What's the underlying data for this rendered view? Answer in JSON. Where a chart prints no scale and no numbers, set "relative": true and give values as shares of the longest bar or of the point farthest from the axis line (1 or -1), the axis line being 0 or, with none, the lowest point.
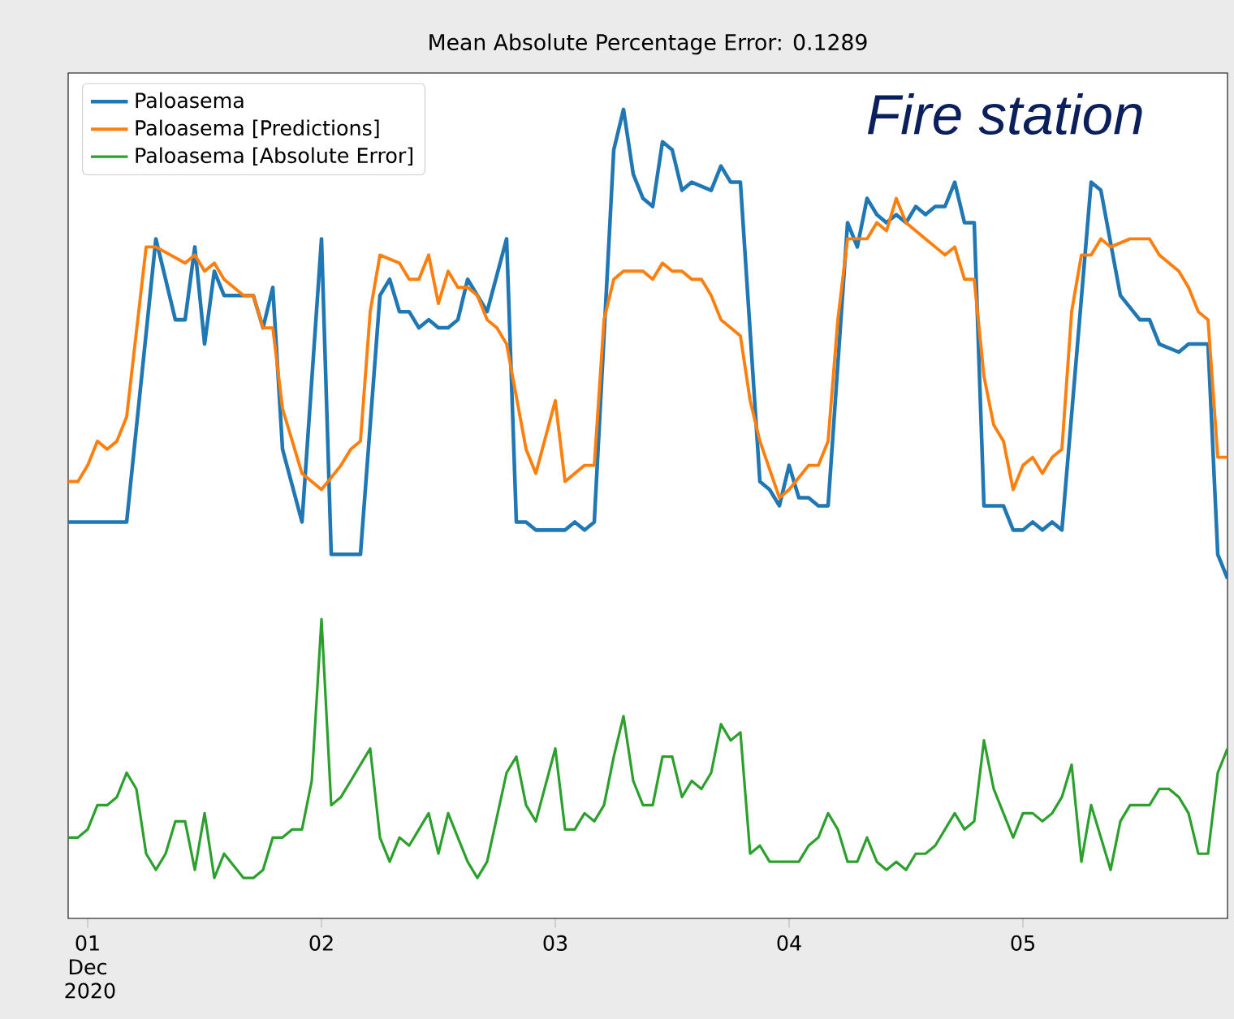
{
  "chart_data": {
    "type": "line",
    "title": "Mean Absolute Percentage Error: 0.1289",
    "annotations": [
      "Fire station"
    ],
    "relative": true,
    "legend": "top left",
    "xlim": [
      "2020-11-30T22:00",
      "2020-12-05T21:00"
    ],
    "xticks": [
      {
        "value": "2020-12-01",
        "label": "01 Dec 2020"
      },
      {
        "value": "2020-12-02",
        "label": "02"
      },
      {
        "value": "2020-12-03",
        "label": "03"
      },
      {
        "value": "2020-12-04",
        "label": "04"
      },
      {
        "value": "2020-12-05",
        "label": "05"
      }
    ],
    "series": [
      {
        "name": "Paloasema",
        "color": "#1f77b4",
        "x": [
          "2020-11-30T22:00",
          "2020-12-01T04:00",
          "2020-12-01T07:00",
          "2020-12-01T09:00",
          "2020-12-01T10:00",
          "2020-12-01T11:00",
          "2020-12-01T12:00",
          "2020-12-01T13:00",
          "2020-12-01T14:00",
          "2020-12-01T17:00",
          "2020-12-01T18:00",
          "2020-12-01T19:00",
          "2020-12-01T20:00",
          "2020-12-01T22:00",
          "2020-12-02T00:00",
          "2020-12-02T01:00",
          "2020-12-02T04:00",
          "2020-12-02T06:00",
          "2020-12-02T07:00",
          "2020-12-02T08:00",
          "2020-12-02T09:00",
          "2020-12-02T10:00",
          "2020-12-02T11:00",
          "2020-12-02T12:00",
          "2020-12-02T13:00",
          "2020-12-02T14:00",
          "2020-12-02T15:00",
          "2020-12-02T16:00",
          "2020-12-02T17:00",
          "2020-12-02T19:00",
          "2020-12-02T20:00",
          "2020-12-02T21:00",
          "2020-12-02T22:00",
          "2020-12-03T01:00",
          "2020-12-03T02:00",
          "2020-12-03T03:00",
          "2020-12-03T04:00",
          "2020-12-03T06:00",
          "2020-12-03T07:00",
          "2020-12-03T08:00",
          "2020-12-03T09:00",
          "2020-12-03T10:00",
          "2020-12-03T11:00",
          "2020-12-03T12:00",
          "2020-12-03T13:00",
          "2020-12-03T14:00",
          "2020-12-03T16:00",
          "2020-12-03T17:00",
          "2020-12-03T18:00",
          "2020-12-03T19:00",
          "2020-12-03T21:00",
          "2020-12-03T22:00",
          "2020-12-03T23:00",
          "2020-12-04T00:00",
          "2020-12-04T01:00",
          "2020-12-04T02:00",
          "2020-12-04T03:00",
          "2020-12-04T04:00",
          "2020-12-04T06:00",
          "2020-12-04T07:00",
          "2020-12-04T08:00",
          "2020-12-04T09:00",
          "2020-12-04T10:00",
          "2020-12-04T11:00",
          "2020-12-04T12:00",
          "2020-12-04T13:00",
          "2020-12-04T14:00",
          "2020-12-04T15:00",
          "2020-12-04T16:00",
          "2020-12-04T17:00",
          "2020-12-04T18:00",
          "2020-12-04T19:00",
          "2020-12-04T20:00",
          "2020-12-04T22:00",
          "2020-12-04T23:00",
          "2020-12-05T00:00",
          "2020-12-05T01:00",
          "2020-12-05T02:00",
          "2020-12-05T03:00",
          "2020-12-05T04:00",
          "2020-12-05T07:00",
          "2020-12-05T08:00",
          "2020-12-05T10:00",
          "2020-12-05T12:00",
          "2020-12-05T13:00",
          "2020-12-05T14:00",
          "2020-12-05T16:00",
          "2020-12-05T17:00",
          "2020-12-05T19:00",
          "2020-12-05T20:00",
          "2020-12-05T21:00"
        ],
        "values": [
          0.49,
          0.49,
          0.84,
          0.74,
          0.74,
          0.83,
          0.71,
          0.8,
          0.77,
          0.77,
          0.73,
          0.78,
          0.58,
          0.49,
          0.84,
          0.45,
          0.45,
          0.77,
          0.79,
          0.75,
          0.75,
          0.73,
          0.74,
          0.73,
          0.73,
          0.74,
          0.79,
          0.77,
          0.75,
          0.84,
          0.49,
          0.49,
          0.48,
          0.48,
          0.49,
          0.48,
          0.49,
          0.95,
          1.0,
          0.92,
          0.89,
          0.88,
          0.96,
          0.95,
          0.9,
          0.91,
          0.9,
          0.93,
          0.91,
          0.91,
          0.54,
          0.53,
          0.51,
          0.56,
          0.52,
          0.52,
          0.51,
          0.51,
          0.86,
          0.83,
          0.89,
          0.87,
          0.86,
          0.87,
          0.86,
          0.88,
          0.87,
          0.88,
          0.88,
          0.91,
          0.86,
          0.86,
          0.51,
          0.51,
          0.48,
          0.48,
          0.49,
          0.48,
          0.49,
          0.48,
          0.91,
          0.9,
          0.77,
          0.74,
          0.74,
          0.71,
          0.7,
          0.71,
          0.71,
          0.45,
          0.42
        ]
      },
      {
        "name": "Paloasema [Predictions]",
        "color": "#ff7f0e",
        "x": [
          "2020-11-30T22:00",
          "2020-11-30T23:00",
          "2020-12-01T00:00",
          "2020-12-01T01:00",
          "2020-12-01T02:00",
          "2020-12-01T03:00",
          "2020-12-01T04:00",
          "2020-12-01T06:00",
          "2020-12-01T07:00",
          "2020-12-01T10:00",
          "2020-12-01T11:00",
          "2020-12-01T12:00",
          "2020-12-01T13:00",
          "2020-12-01T14:00",
          "2020-12-01T16:00",
          "2020-12-01T17:00",
          "2020-12-01T18:00",
          "2020-12-01T19:00",
          "2020-12-01T20:00",
          "2020-12-01T22:00",
          "2020-12-02T00:00",
          "2020-12-02T02:00",
          "2020-12-02T03:00",
          "2020-12-02T04:00",
          "2020-12-02T05:00",
          "2020-12-02T06:00",
          "2020-12-02T08:00",
          "2020-12-02T09:00",
          "2020-12-02T10:00",
          "2020-12-02T11:00",
          "2020-12-02T12:00",
          "2020-12-02T13:00",
          "2020-12-02T14:00",
          "2020-12-02T15:00",
          "2020-12-02T16:00",
          "2020-12-02T17:00",
          "2020-12-02T18:00",
          "2020-12-02T19:00",
          "2020-12-02T21:00",
          "2020-12-02T22:00",
          "2020-12-03T00:00",
          "2020-12-03T01:00",
          "2020-12-03T02:00",
          "2020-12-03T03:00",
          "2020-12-03T04:00",
          "2020-12-03T05:00",
          "2020-12-03T06:00",
          "2020-12-03T07:00",
          "2020-12-03T08:00",
          "2020-12-03T09:00",
          "2020-12-03T10:00",
          "2020-12-03T11:00",
          "2020-12-03T12:00",
          "2020-12-03T13:00",
          "2020-12-03T14:00",
          "2020-12-03T15:00",
          "2020-12-03T16:00",
          "2020-12-03T17:00",
          "2020-12-03T18:00",
          "2020-12-03T19:00",
          "2020-12-03T20:00",
          "2020-12-03T21:00",
          "2020-12-03T23:00",
          "2020-12-04T00:00",
          "2020-12-04T02:00",
          "2020-12-04T03:00",
          "2020-12-04T04:00",
          "2020-12-04T05:00",
          "2020-12-04T06:00",
          "2020-12-04T07:00",
          "2020-12-04T08:00",
          "2020-12-04T09:00",
          "2020-12-04T10:00",
          "2020-12-04T11:00",
          "2020-12-04T12:00",
          "2020-12-04T13:00",
          "2020-12-04T14:00",
          "2020-12-04T15:00",
          "2020-12-04T16:00",
          "2020-12-04T17:00",
          "2020-12-04T18:00",
          "2020-12-04T19:00",
          "2020-12-04T20:00",
          "2020-12-04T21:00",
          "2020-12-04T22:00",
          "2020-12-04T23:00",
          "2020-12-05T00:00",
          "2020-12-05T01:00",
          "2020-12-05T02:00",
          "2020-12-05T03:00",
          "2020-12-05T04:00",
          "2020-12-05T05:00",
          "2020-12-05T06:00",
          "2020-12-05T07:00",
          "2020-12-05T08:00",
          "2020-12-05T09:00",
          "2020-12-05T11:00",
          "2020-12-05T13:00",
          "2020-12-05T14:00",
          "2020-12-05T15:00",
          "2020-12-05T16:00",
          "2020-12-05T17:00",
          "2020-12-05T18:00",
          "2020-12-05T19:00",
          "2020-12-05T20:00",
          "2020-12-05T21:00"
        ],
        "values": [
          0.54,
          0.54,
          0.56,
          0.59,
          0.58,
          0.59,
          0.62,
          0.83,
          0.83,
          0.81,
          0.82,
          0.8,
          0.81,
          0.79,
          0.77,
          0.77,
          0.73,
          0.73,
          0.63,
          0.55,
          0.53,
          0.56,
          0.58,
          0.59,
          0.75,
          0.82,
          0.81,
          0.79,
          0.79,
          0.82,
          0.76,
          0.8,
          0.78,
          0.78,
          0.77,
          0.74,
          0.73,
          0.71,
          0.58,
          0.55,
          0.64,
          0.54,
          0.55,
          0.56,
          0.56,
          0.74,
          0.79,
          0.8,
          0.8,
          0.8,
          0.79,
          0.81,
          0.8,
          0.8,
          0.79,
          0.79,
          0.77,
          0.74,
          0.73,
          0.72,
          0.64,
          0.59,
          0.52,
          0.53,
          0.56,
          0.56,
          0.59,
          0.74,
          0.84,
          0.84,
          0.84,
          0.86,
          0.85,
          0.89,
          0.86,
          0.85,
          0.84,
          0.83,
          0.82,
          0.83,
          0.79,
          0.79,
          0.67,
          0.61,
          0.59,
          0.53,
          0.56,
          0.57,
          0.55,
          0.57,
          0.58,
          0.75,
          0.82,
          0.82,
          0.84,
          0.83,
          0.84,
          0.84,
          0.82,
          0.81,
          0.8,
          0.78,
          0.75,
          0.74,
          0.57,
          0.57
        ]
      },
      {
        "name": "Paloasema [Absolute Error]",
        "color": "#2ca02c",
        "x": [
          "2020-11-30T22:00",
          "2020-11-30T23:00",
          "2020-12-01T00:00",
          "2020-12-01T01:00",
          "2020-12-01T02:00",
          "2020-12-01T03:00",
          "2020-12-01T04:00",
          "2020-12-01T05:00",
          "2020-12-01T06:00",
          "2020-12-01T07:00",
          "2020-12-01T08:00",
          "2020-12-01T09:00",
          "2020-12-01T10:00",
          "2020-12-01T11:00",
          "2020-12-01T12:00",
          "2020-12-01T13:00",
          "2020-12-01T14:00",
          "2020-12-01T16:00",
          "2020-12-01T17:00",
          "2020-12-01T18:00",
          "2020-12-01T19:00",
          "2020-12-01T20:00",
          "2020-12-01T21:00",
          "2020-12-01T22:00",
          "2020-12-01T23:00",
          "2020-12-02T00:00",
          "2020-12-02T01:00",
          "2020-12-02T02:00",
          "2020-12-02T03:00",
          "2020-12-02T04:00",
          "2020-12-02T05:00",
          "2020-12-02T06:00",
          "2020-12-02T07:00",
          "2020-12-02T08:00",
          "2020-12-02T09:00",
          "2020-12-02T10:00",
          "2020-12-02T11:00",
          "2020-12-02T12:00",
          "2020-12-02T13:00",
          "2020-12-02T14:00",
          "2020-12-02T15:00",
          "2020-12-02T16:00",
          "2020-12-02T17:00",
          "2020-12-02T19:00",
          "2020-12-02T20:00",
          "2020-12-02T21:00",
          "2020-12-02T22:00",
          "2020-12-03T00:00",
          "2020-12-03T01:00",
          "2020-12-03T02:00",
          "2020-12-03T03:00",
          "2020-12-03T04:00",
          "2020-12-03T05:00",
          "2020-12-03T06:00",
          "2020-12-03T07:00",
          "2020-12-03T08:00",
          "2020-12-03T09:00",
          "2020-12-03T10:00",
          "2020-12-03T11:00",
          "2020-12-03T12:00",
          "2020-12-03T13:00",
          "2020-12-03T14:00",
          "2020-12-03T15:00",
          "2020-12-03T16:00",
          "2020-12-03T17:00",
          "2020-12-03T18:00",
          "2020-12-03T19:00",
          "2020-12-03T20:00",
          "2020-12-03T21:00",
          "2020-12-03T22:00",
          "2020-12-04T00:00",
          "2020-12-04T01:00",
          "2020-12-04T02:00",
          "2020-12-04T03:00",
          "2020-12-04T04:00",
          "2020-12-04T05:00",
          "2020-12-04T06:00",
          "2020-12-04T07:00",
          "2020-12-04T08:00",
          "2020-12-04T09:00",
          "2020-12-04T10:00",
          "2020-12-04T11:00",
          "2020-12-04T12:00",
          "2020-12-04T13:00",
          "2020-12-04T14:00",
          "2020-12-04T15:00",
          "2020-12-04T17:00",
          "2020-12-04T18:00",
          "2020-12-04T19:00",
          "2020-12-04T20:00",
          "2020-12-04T21:00",
          "2020-12-04T22:00",
          "2020-12-04T23:00",
          "2020-12-05T00:00",
          "2020-12-05T01:00",
          "2020-12-05T02:00",
          "2020-12-05T03:00",
          "2020-12-05T04:00",
          "2020-12-05T05:00",
          "2020-12-05T06:00",
          "2020-12-05T07:00",
          "2020-12-05T08:00",
          "2020-12-05T09:00",
          "2020-12-05T10:00",
          "2020-12-05T11:00",
          "2020-12-05T12:00",
          "2020-12-05T13:00",
          "2020-12-05T14:00",
          "2020-12-05T15:00",
          "2020-12-05T16:00",
          "2020-12-05T17:00",
          "2020-12-05T18:00",
          "2020-12-05T19:00",
          "2020-12-05T20:00",
          "2020-12-05T21:00"
        ],
        "values": [
          0.1,
          0.1,
          0.11,
          0.14,
          0.14,
          0.15,
          0.18,
          0.16,
          0.08,
          0.06,
          0.08,
          0.12,
          0.12,
          0.06,
          0.13,
          0.05,
          0.08,
          0.05,
          0.05,
          0.06,
          0.1,
          0.1,
          0.11,
          0.11,
          0.17,
          0.37,
          0.14,
          0.15,
          0.17,
          0.19,
          0.21,
          0.1,
          0.07,
          0.1,
          0.09,
          0.11,
          0.13,
          0.08,
          0.13,
          0.1,
          0.07,
          0.05,
          0.07,
          0.18,
          0.2,
          0.14,
          0.12,
          0.21,
          0.11,
          0.11,
          0.13,
          0.12,
          0.14,
          0.2,
          0.25,
          0.17,
          0.14,
          0.14,
          0.2,
          0.2,
          0.15,
          0.17,
          0.16,
          0.18,
          0.24,
          0.22,
          0.23,
          0.08,
          0.09,
          0.07,
          0.07,
          0.07,
          0.09,
          0.1,
          0.13,
          0.11,
          0.07,
          0.07,
          0.1,
          0.07,
          0.06,
          0.07,
          0.06,
          0.08,
          0.08,
          0.09,
          0.13,
          0.11,
          0.12,
          0.22,
          0.16,
          0.13,
          0.1,
          0.13,
          0.13,
          0.12,
          0.13,
          0.15,
          0.19,
          0.07,
          0.14,
          0.1,
          0.06,
          0.12,
          0.14,
          0.14,
          0.14,
          0.16,
          0.16,
          0.15,
          0.13,
          0.08,
          0.08,
          0.18,
          0.21
        ]
      }
    ]
  }
}
